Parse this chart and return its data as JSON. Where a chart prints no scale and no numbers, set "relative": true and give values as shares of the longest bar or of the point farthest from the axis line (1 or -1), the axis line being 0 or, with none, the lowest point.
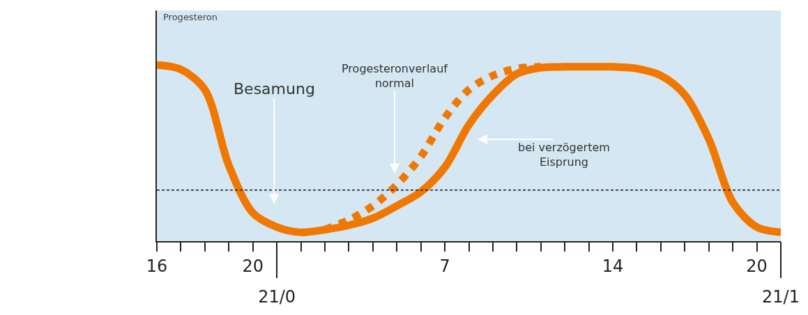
{
  "chart_data": {
    "type": "line",
    "relative": true,
    "ylabel": "Progesteron",
    "grid": false,
    "marker": "none",
    "categories": [
      "16",
      null,
      null,
      null,
      "20",
      "21/0",
      null,
      null,
      null,
      null,
      null,
      null,
      "7",
      null,
      null,
      null,
      null,
      null,
      null,
      "14",
      null,
      null,
      null,
      null,
      null,
      "20",
      "21/1"
    ],
    "series": [
      {
        "color": "#f07800",
        "line_style": "dotted",
        "values": [
          null,
          null,
          null,
          null,
          null,
          null,
          null,
          0.065,
          0.12,
          0.2,
          0.32,
          0.48,
          0.7,
          0.86,
          0.94,
          0.98,
          0.99,
          null,
          null,
          null,
          null,
          null,
          null,
          null,
          null,
          null,
          null
        ]
      },
      {
        "color": "#f07800",
        "line_style": "solid",
        "values": [
          1.0,
          0.975,
          0.86,
          0.43,
          0.16,
          0.08,
          0.05,
          0.065,
          0.09,
          0.13,
          0.2,
          0.28,
          0.42,
          0.66,
          0.83,
          0.95,
          0.985,
          0.99,
          0.99,
          0.99,
          0.98,
          0.94,
          0.83,
          0.58,
          0.22,
          0.08,
          0.05
        ]
      }
    ],
    "ref_lines": [
      {
        "axis": "y",
        "value": 0.29,
        "line_style": "dashed",
        "color": "#1a1a1a"
      }
    ],
    "annotations": [
      "Besamung",
      "Progesteronverlauf\nnormal",
      "bei verzögertem\nEisprung"
    ]
  }
}
